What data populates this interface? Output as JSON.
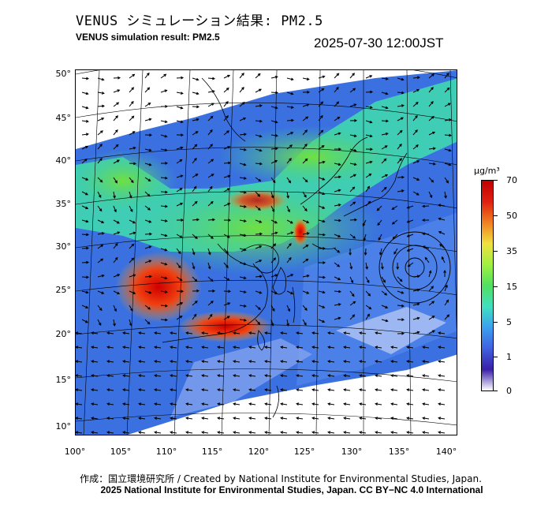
{
  "header": {
    "title_jp": "VENUS シミュレーション結果: PM2.5",
    "title_en": "VENUS simulation result: PM2.5",
    "timestamp": "2025-07-30 12:00JST"
  },
  "map": {
    "lat_ticks": [
      "50°",
      "45°",
      "40°",
      "35°",
      "30°",
      "25°",
      "20°",
      "15°",
      "10°"
    ],
    "lon_ticks": [
      "100°",
      "105°",
      "110°",
      "115°",
      "120°",
      "125°",
      "130°",
      "135°",
      "140°"
    ],
    "lat_range": [
      10,
      50
    ],
    "lon_range": [
      100,
      140
    ]
  },
  "colorbar": {
    "unit": "μg/m³",
    "ticks": [
      "70",
      "50",
      "35",
      "15",
      "5",
      "1",
      "0"
    ],
    "colors": [
      "#3a1fa8",
      "#4060e0",
      "#3aa0f0",
      "#40e0c0",
      "#50e060",
      "#a0f040",
      "#f0e040",
      "#f08020",
      "#e02010",
      "#c00000"
    ]
  },
  "footer": {
    "credit_jp": "作成：国立環境研究所 / Created by National Institute for Environmental Studies, Japan.",
    "credit_en": "2025 National Institute for Environmental Studies, Japan. CC BY−NC 4.0 International"
  }
}
